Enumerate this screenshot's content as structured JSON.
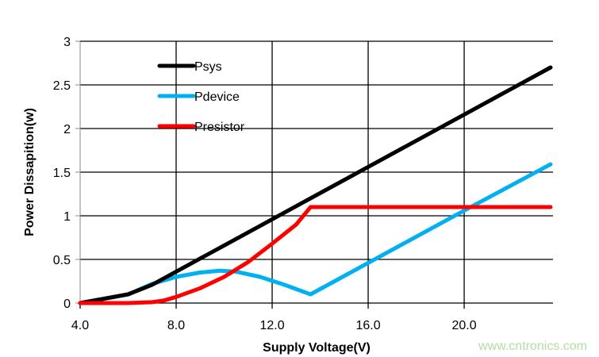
{
  "chart_data": {
    "type": "line",
    "title": "",
    "xlabel": "Supply Voltage(V)",
    "ylabel": "Power Dissapition(w)",
    "xlim": [
      4.0,
      23.7
    ],
    "ylim": [
      0,
      3
    ],
    "xticks": [
      4,
      8,
      12,
      16,
      20
    ],
    "xtick_labels": [
      "4.0",
      "8.0",
      "12.0",
      "16.0",
      "20.0"
    ],
    "yticks": [
      0,
      0.5,
      1,
      1.5,
      2,
      2.5,
      3
    ],
    "ytick_labels": [
      "0",
      "0.5",
      "1",
      "1.5",
      "2",
      "2.5",
      "3"
    ],
    "grid": true,
    "legend_position": "top-left",
    "series": [
      {
        "name": "Psys",
        "color": "#000000",
        "points": [
          [
            4,
            0
          ],
          [
            5,
            0.05
          ],
          [
            6,
            0.1
          ],
          [
            7,
            0.21
          ],
          [
            8,
            0.36
          ],
          [
            10,
            0.66
          ],
          [
            12,
            0.96
          ],
          [
            13.6,
            1.2
          ],
          [
            16,
            1.56
          ],
          [
            20,
            2.16
          ],
          [
            23.6,
            2.7
          ]
        ]
      },
      {
        "name": "Pdevice",
        "color": "#00b0f0",
        "points": [
          [
            4,
            0
          ],
          [
            5,
            0.05
          ],
          [
            6,
            0.1
          ],
          [
            7,
            0.22
          ],
          [
            8,
            0.3
          ],
          [
            9,
            0.35
          ],
          [
            9.8,
            0.37
          ],
          [
            10.5,
            0.36
          ],
          [
            11.5,
            0.3
          ],
          [
            12.5,
            0.21
          ],
          [
            13.6,
            0.1
          ],
          [
            16,
            0.46
          ],
          [
            20,
            1.06
          ],
          [
            23.6,
            1.59
          ]
        ]
      },
      {
        "name": "Presistor",
        "color": "#ff0000",
        "points": [
          [
            4,
            0
          ],
          [
            6,
            0
          ],
          [
            7,
            0.01
          ],
          [
            7.5,
            0.03
          ],
          [
            8,
            0.07
          ],
          [
            9,
            0.17
          ],
          [
            10,
            0.3
          ],
          [
            11,
            0.47
          ],
          [
            12,
            0.68
          ],
          [
            13,
            0.9
          ],
          [
            13.6,
            1.1
          ],
          [
            23.6,
            1.1
          ]
        ]
      }
    ]
  },
  "watermark": "www.cntronics.com"
}
